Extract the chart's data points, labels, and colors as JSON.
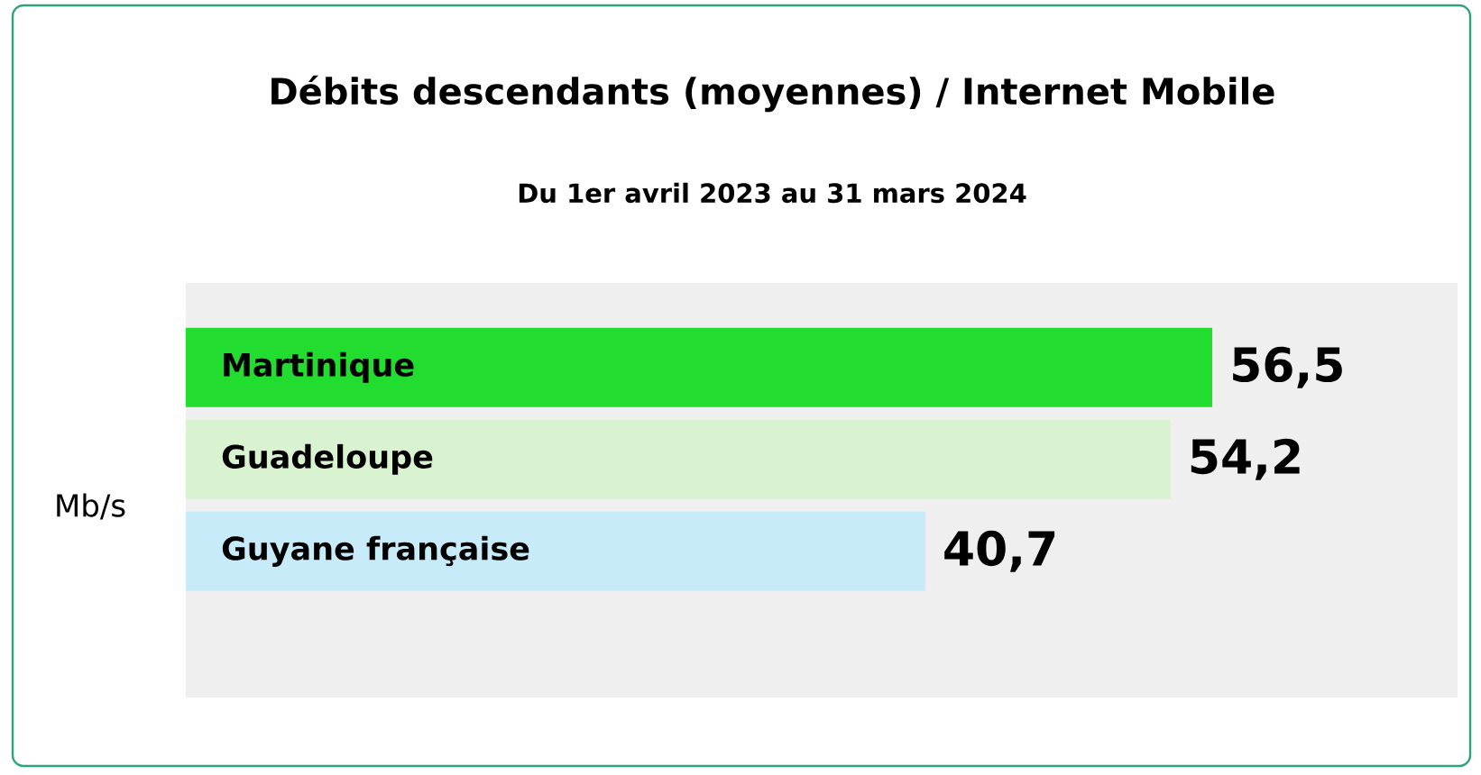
{
  "chart_data": {
    "type": "bar",
    "orientation": "horizontal",
    "title": "Débits descendants (moyennes) / Internet Mobile",
    "subtitle": "Du 1er avril 2023 au 31 mars 2024",
    "categories": [
      "Martinique",
      "Guadeloupe",
      "Guyane française"
    ],
    "values": [
      56.5,
      54.2,
      40.7
    ],
    "colors": [
      "#22dd30",
      "#d9f2d0",
      "#c8ebf9"
    ],
    "value_labels": [
      "56,5",
      "54,2",
      "40,7"
    ],
    "xlim": [
      0,
      70
    ],
    "tick_labels": false,
    "annotations": [
      "Mb/s"
    ]
  }
}
